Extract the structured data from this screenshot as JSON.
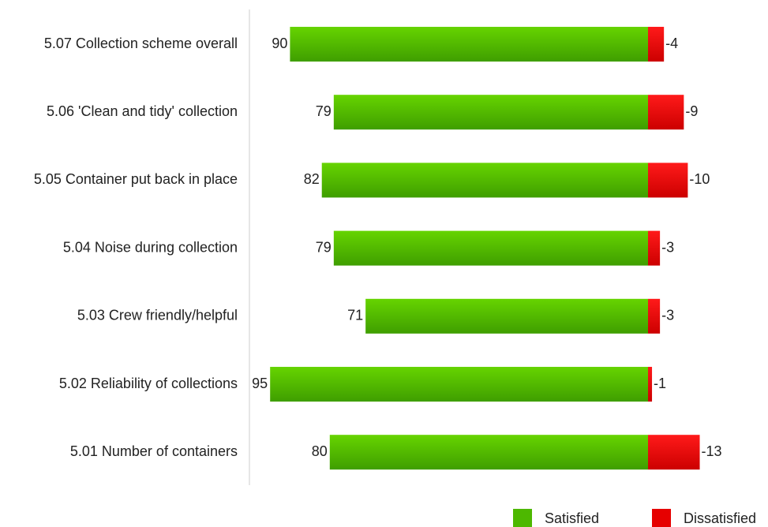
{
  "chart_data": {
    "type": "bar",
    "categories": [
      "5.07 Collection scheme overall",
      "5.06 'Clean and tidy' collection",
      "5.05 Container put back in place",
      "5.04 Noise during collection",
      "5.03 Crew friendly/helpful",
      "5.02 Reliability of collections",
      "5.01 Number of containers"
    ],
    "series": [
      {
        "name": "Satisfied",
        "color": "#4db800",
        "values": [
          90,
          79,
          82,
          79,
          71,
          95,
          80
        ]
      },
      {
        "name": "Dissatisfied",
        "color": "#e60000",
        "values": [
          -4,
          -9,
          -10,
          -3,
          -3,
          -1,
          -13
        ]
      }
    ],
    "legend": "bottom-right"
  }
}
